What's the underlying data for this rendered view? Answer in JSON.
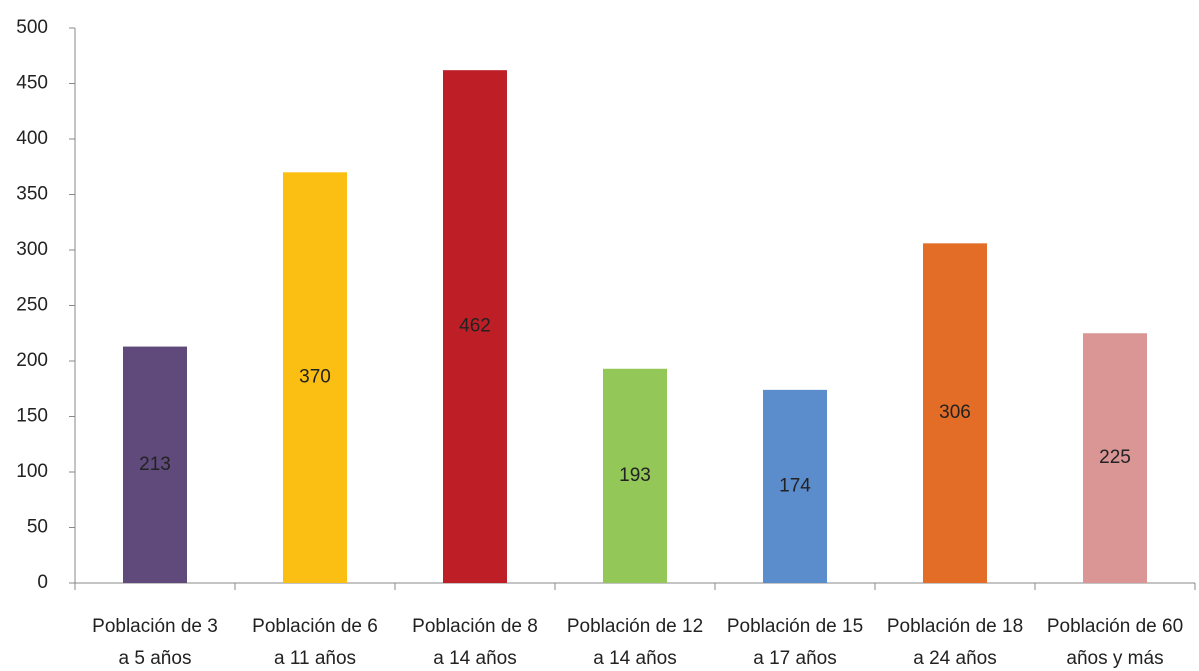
{
  "chart_data": {
    "type": "bar",
    "categories": [
      "Población de 3 a 5 años",
      "Población de 6 a 11 años",
      "Población de 8 a 14 años",
      "Población de 12 a 14 años",
      "Población de 15 a 17 años",
      "Población de 18 a 24 años",
      "Población de 60 años y más"
    ],
    "values": [
      213,
      370,
      462,
      193,
      174,
      306,
      225
    ],
    "colors": [
      "#5f4a7b",
      "#fbbf14",
      "#be1f27",
      "#93c757",
      "#5b8dcd",
      "#e36d26",
      "#da9595"
    ],
    "ylim": [
      0,
      500
    ],
    "yticks": [
      0,
      50,
      100,
      150,
      200,
      250,
      300,
      350,
      400,
      450,
      500
    ],
    "grid": false
  }
}
